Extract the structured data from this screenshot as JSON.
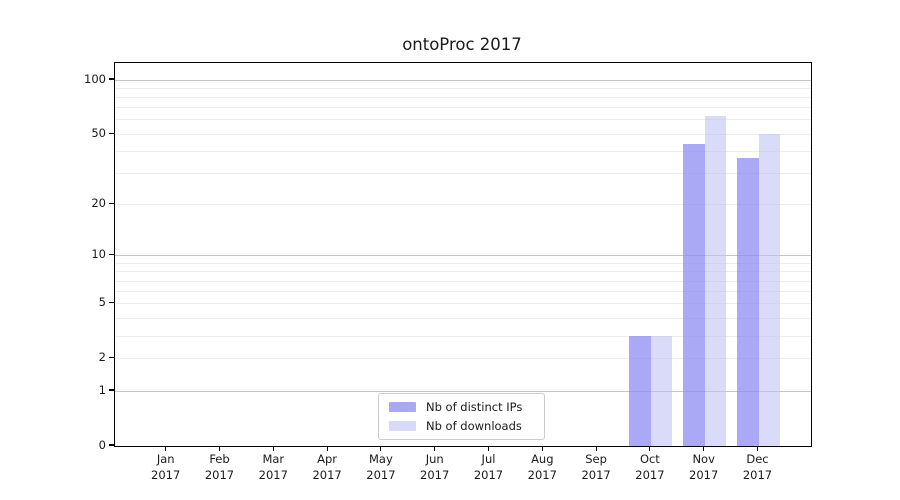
{
  "chart_data": {
    "type": "bar",
    "title": "ontoProc 2017",
    "categories": [
      "Jan 2017",
      "Feb 2017",
      "Mar 2017",
      "Apr 2017",
      "May 2017",
      "Jun 2017",
      "Jul 2017",
      "Aug 2017",
      "Sep 2017",
      "Oct 2017",
      "Nov 2017",
      "Dec 2017"
    ],
    "series": [
      {
        "name": "Nb of distinct IPs",
        "swatch_color": "#a9a9f3",
        "bar_color": "rgba(137,137,242,0.73)",
        "values": [
          0,
          0,
          0,
          0,
          0,
          0,
          0,
          0,
          0,
          3,
          44,
          37
        ]
      },
      {
        "name": "Nb of downloads",
        "swatch_color": "#d8d8f9",
        "bar_color": "rgba(190,190,245,0.57)",
        "values": [
          0,
          0,
          0,
          0,
          0,
          0,
          0,
          0,
          0,
          3,
          63,
          50
        ]
      }
    ],
    "y_scale": "log1p",
    "y_ticks": [
      0,
      1,
      2,
      5,
      10,
      20,
      50,
      100
    ],
    "ylim": [
      0,
      124
    ],
    "grid": {
      "major_values": [
        1,
        10,
        100
      ],
      "minor_values": [
        2,
        3,
        4,
        5,
        6,
        7,
        8,
        9,
        20,
        30,
        40,
        50,
        60,
        70,
        80,
        90
      ],
      "major_color": "#c6c6c6",
      "minor_color": "#ededed"
    },
    "legend": {
      "position": "lower center",
      "border_color": "#cccccc"
    },
    "text_color": "#1a1a1a",
    "axis_color": "#000000"
  }
}
